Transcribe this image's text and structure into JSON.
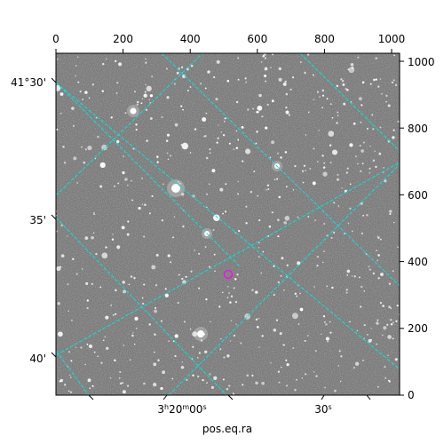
{
  "figure": {
    "xlabel": "pos.eq.ra",
    "top_ticks": [
      "0",
      "200",
      "400",
      "600",
      "800",
      "1000"
    ],
    "right_ticks": [
      "0",
      "200",
      "400",
      "600",
      "800",
      "1000"
    ],
    "left_ticks": [
      "41°30'",
      "35'",
      "40'"
    ],
    "bottom_tick_main": "3",
    "bottom_tick_h": "h",
    "bottom_tick_mid": "20",
    "bottom_tick_m": "m",
    "bottom_tick_sec": "00",
    "bottom_tick_s": "s",
    "bottom_tick_2": "30",
    "bottom_tick_2s": "s"
  },
  "colors": {
    "grid": "#00e5e5",
    "marker": "#ff00ff",
    "sky": "#6e6e6e"
  }
}
